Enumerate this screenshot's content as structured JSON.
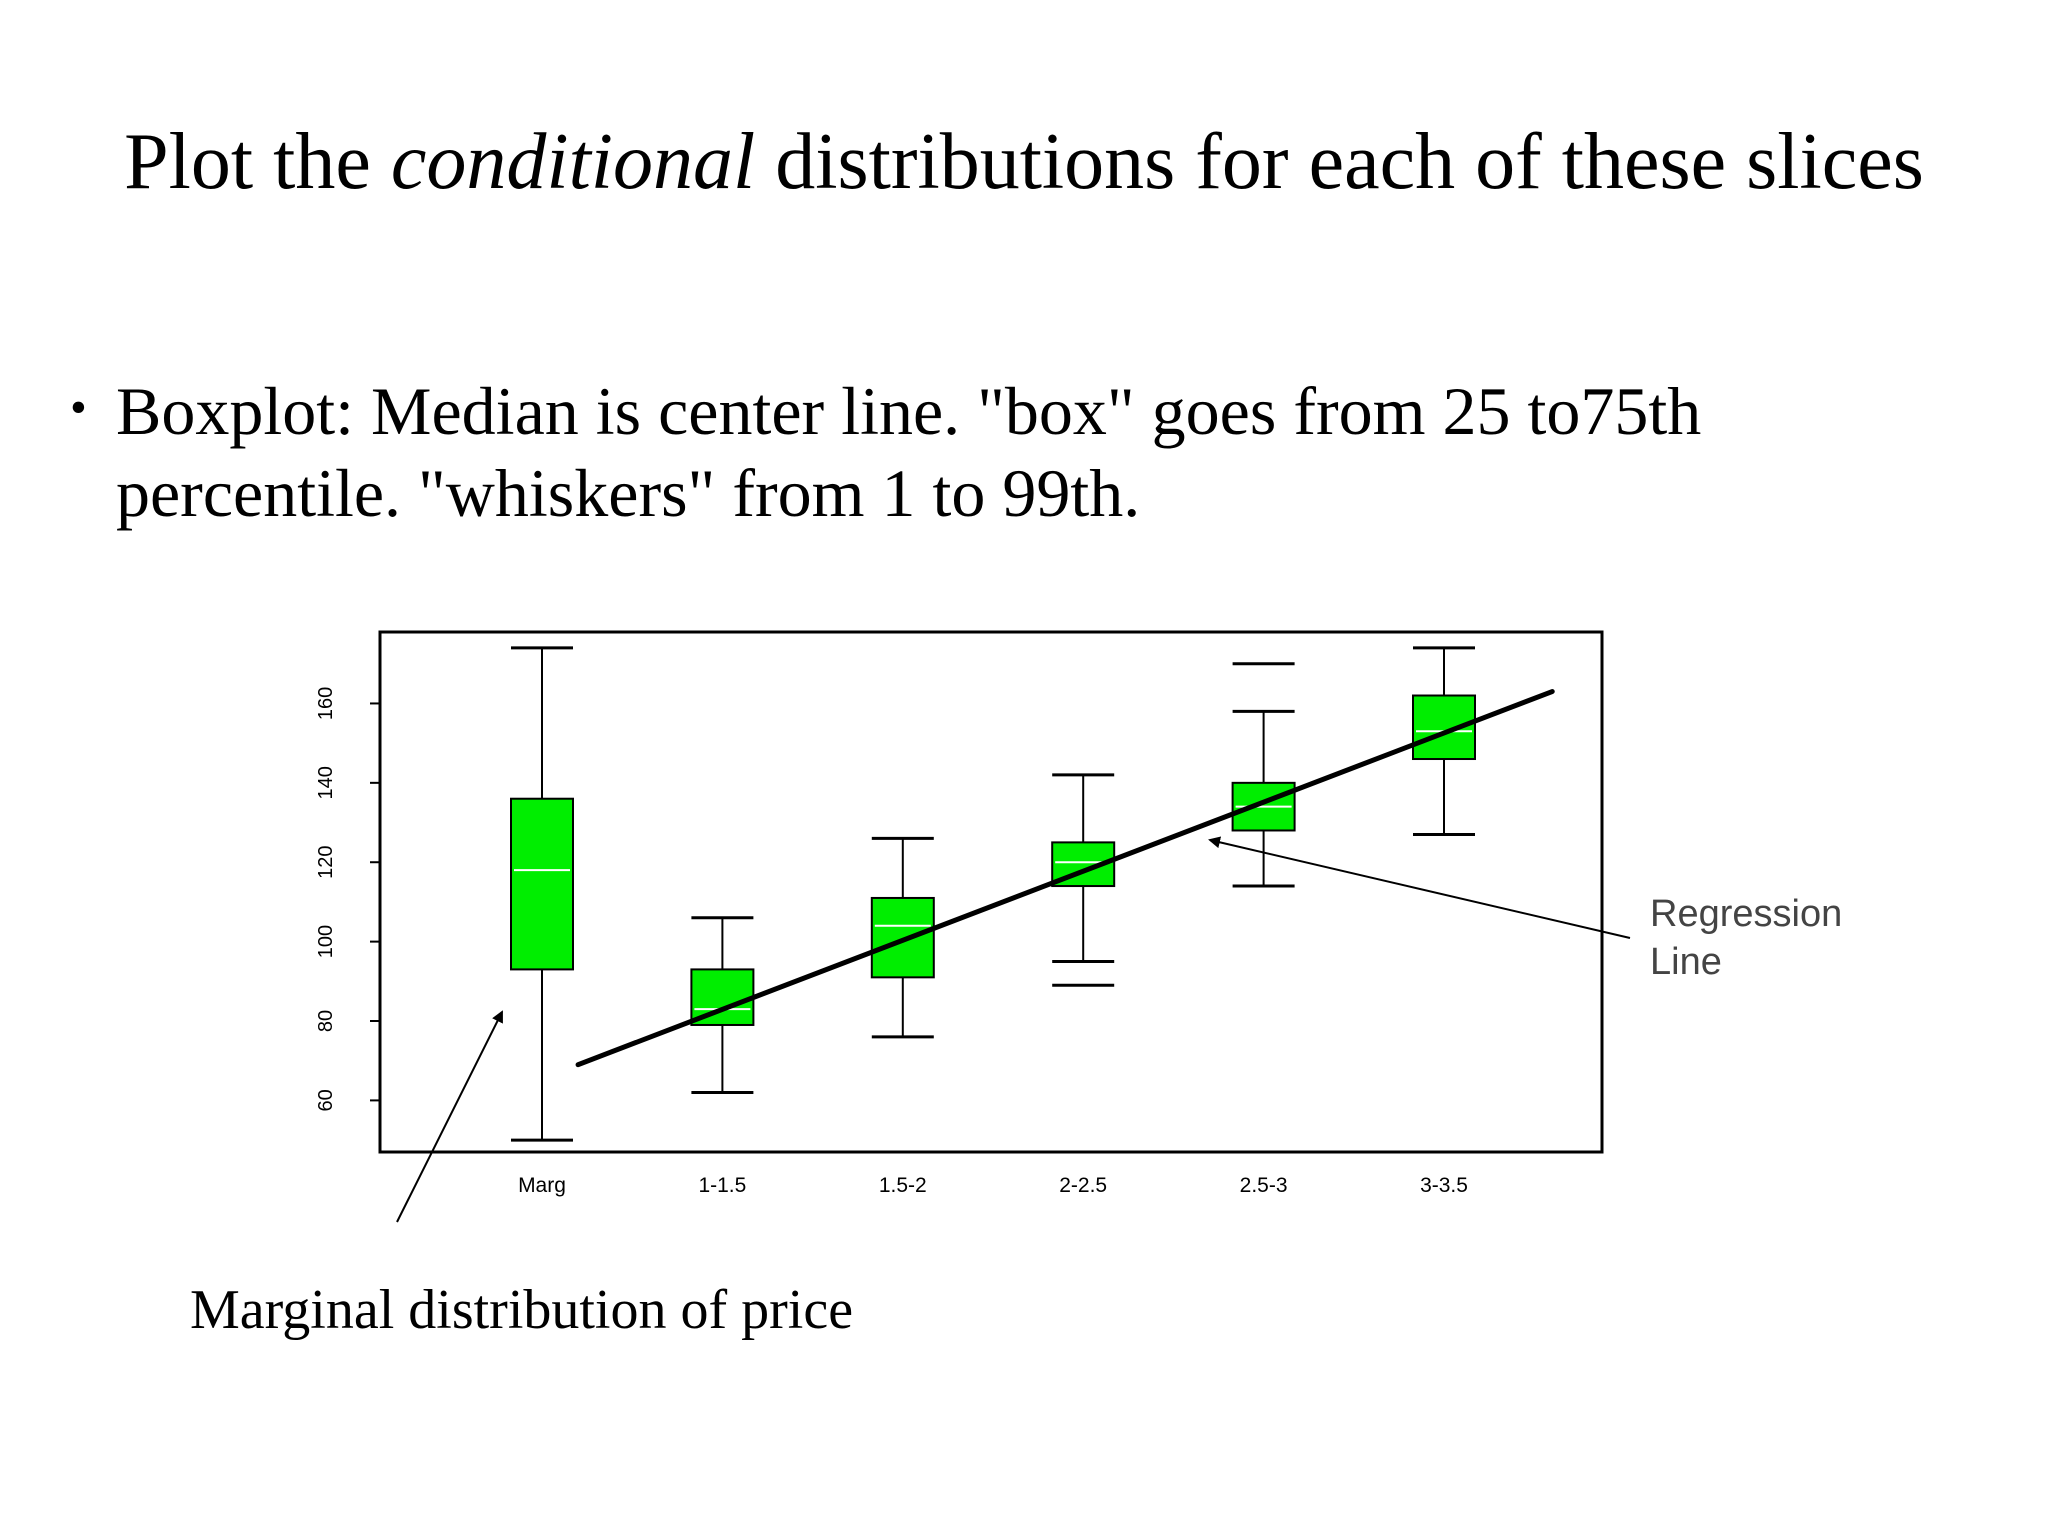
{
  "slide": {
    "title_before": "Plot the ",
    "title_italic": "conditional",
    "title_after": " distributions for each of these slices",
    "bullet_symbol": "•",
    "bullet_text": "Boxplot: Median is center line. \"box\" goes from 25 to75th percentile. \"whiskers\" from 1 to 99th.",
    "caption": "Marginal distribution of price",
    "annotation_line1": "Regression",
    "annotation_line2": "Line"
  },
  "chart_data": {
    "type": "boxplot",
    "title": "",
    "xlabel": "",
    "ylabel": "",
    "ylim": [
      47,
      178
    ],
    "yticks": [
      60,
      80,
      100,
      120,
      140,
      160
    ],
    "categories": [
      "Marg",
      "1-1.5",
      "1.5-2",
      "2-2.5",
      "2.5-3",
      "3-3.5"
    ],
    "boxes": [
      {
        "category": "Marg",
        "whisker_low": 50,
        "q1": 93,
        "median": 118,
        "q3": 136,
        "whisker_high": 174
      },
      {
        "category": "1-1.5",
        "whisker_low": 62,
        "q1": 79,
        "median": 83,
        "q3": 93,
        "whisker_high": 106
      },
      {
        "category": "1.5-2",
        "whisker_low": 76,
        "q1": 91,
        "median": 104,
        "q3": 111,
        "whisker_high": 126
      },
      {
        "category": "2-2.5",
        "whisker_low": 95,
        "q1": 114,
        "median": 120,
        "q3": 125,
        "whisker_high": 142,
        "extra_line": 89
      },
      {
        "category": "2.5-3",
        "whisker_low": 114,
        "q1": 128,
        "median": 134,
        "q3": 140,
        "whisker_high": 158,
        "extra_line": 170
      },
      {
        "category": "3-3.5",
        "whisker_low": 127,
        "q1": 146,
        "median": 153,
        "q3": 162,
        "whisker_high": 174
      }
    ],
    "regression_line": {
      "x_start": 1.2,
      "y_start": 69,
      "x_end": 6.6,
      "y_end": 163
    },
    "box_color": "#00ee00",
    "median_color": "#ffffff",
    "grid": false,
    "legend": "none"
  }
}
